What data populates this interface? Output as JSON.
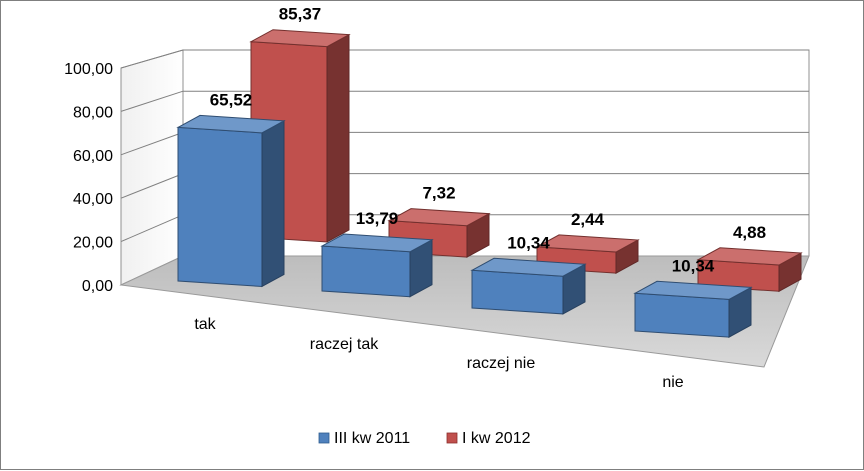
{
  "chart_data": {
    "type": "bar",
    "title": "",
    "xlabel": "",
    "ylabel": "",
    "categories": [
      "tak",
      "raczej tak",
      "raczej nie",
      "nie"
    ],
    "series": [
      {
        "name": "III kw 2011",
        "values": [
          65.52,
          13.79,
          10.34,
          10.34
        ],
        "labels": [
          "65,52",
          "13,79",
          "10,34",
          "10,34"
        ]
      },
      {
        "name": "I kw 2012",
        "values": [
          85.37,
          7.32,
          2.44,
          4.88
        ],
        "labels": [
          "85,37",
          "7,32",
          "2,44",
          "4,88"
        ]
      }
    ],
    "yticks": [
      "0,00",
      "20,00",
      "40,00",
      "60,00",
      "80,00",
      "100,00"
    ],
    "ylim": [
      0,
      100
    ],
    "grid": true,
    "legend_position": "bottom",
    "style": "3d-clustered-column"
  },
  "colors": {
    "series": [
      "#4f81bd",
      "#c0504d"
    ],
    "frame": "#7f7f7f",
    "grid": "#808080",
    "floor": "#c8c8c8"
  }
}
